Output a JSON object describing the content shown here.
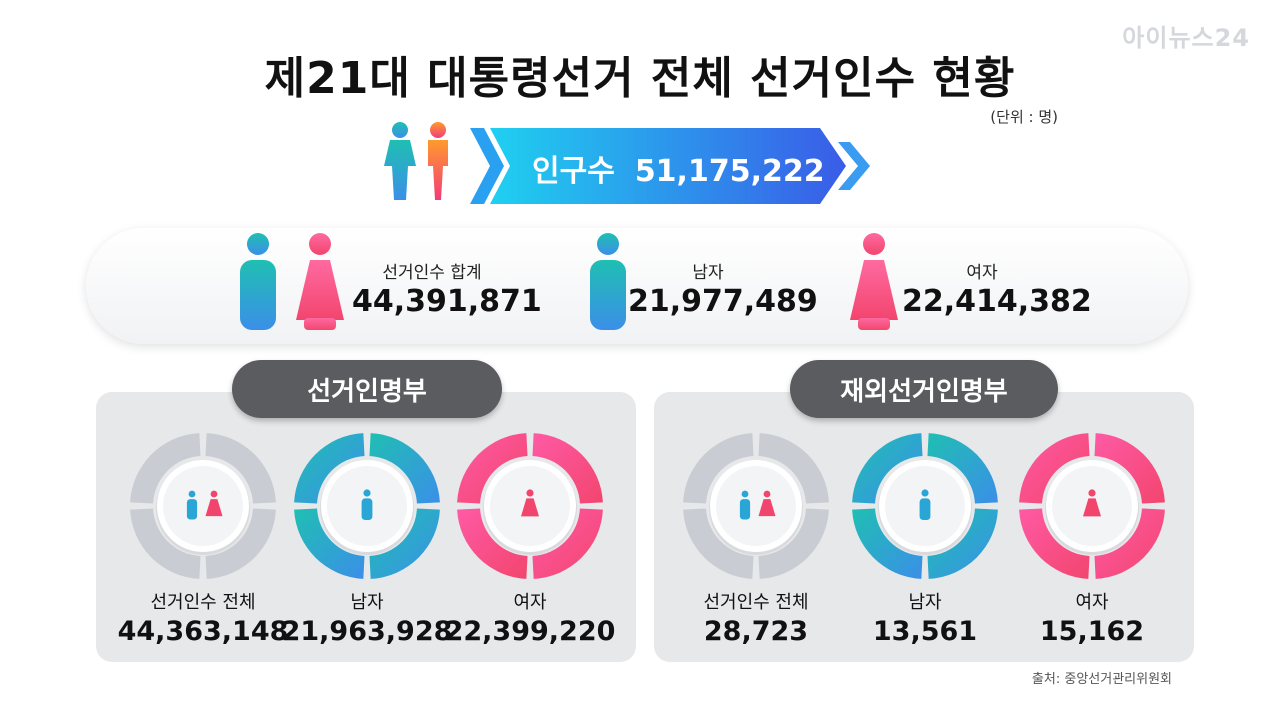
{
  "title": "제21대 대통령선거 전체 선거인수 현황",
  "logo": "아이뉴스24",
  "unit": "(단위 : 명)",
  "population": {
    "label": "인구수",
    "value": "51,175,222"
  },
  "totals": [
    {
      "label": "선거인수 합계",
      "value": "44,391,871"
    },
    {
      "label": "남자",
      "value": "21,977,489"
    },
    {
      "label": "여자",
      "value": "22,414,382"
    }
  ],
  "panels": [
    {
      "title": "선거인명부",
      "items": [
        {
          "label": "선거인수 전체",
          "value": "44,363,148"
        },
        {
          "label": "남자",
          "value": "21,963,928"
        },
        {
          "label": "여자",
          "value": "22,399,220"
        }
      ]
    },
    {
      "title": "재외선거인명부",
      "items": [
        {
          "label": "선거인수 전체",
          "value": "28,723"
        },
        {
          "label": "남자",
          "value": "13,561"
        },
        {
          "label": "여자",
          "value": "15,162"
        }
      ]
    }
  ],
  "source": "출처: 중앙선거관리위원회",
  "colors": {
    "male": "#1fbfb2",
    "male_end": "#3b8fe8",
    "female": "#ff5aa5",
    "female_end": "#f2456e",
    "ribbon_start": "#1fd0f0",
    "ribbon_end": "#3a5ce8",
    "neutral_ring": "#c9ccd2",
    "pill": "#5b5c5f"
  }
}
